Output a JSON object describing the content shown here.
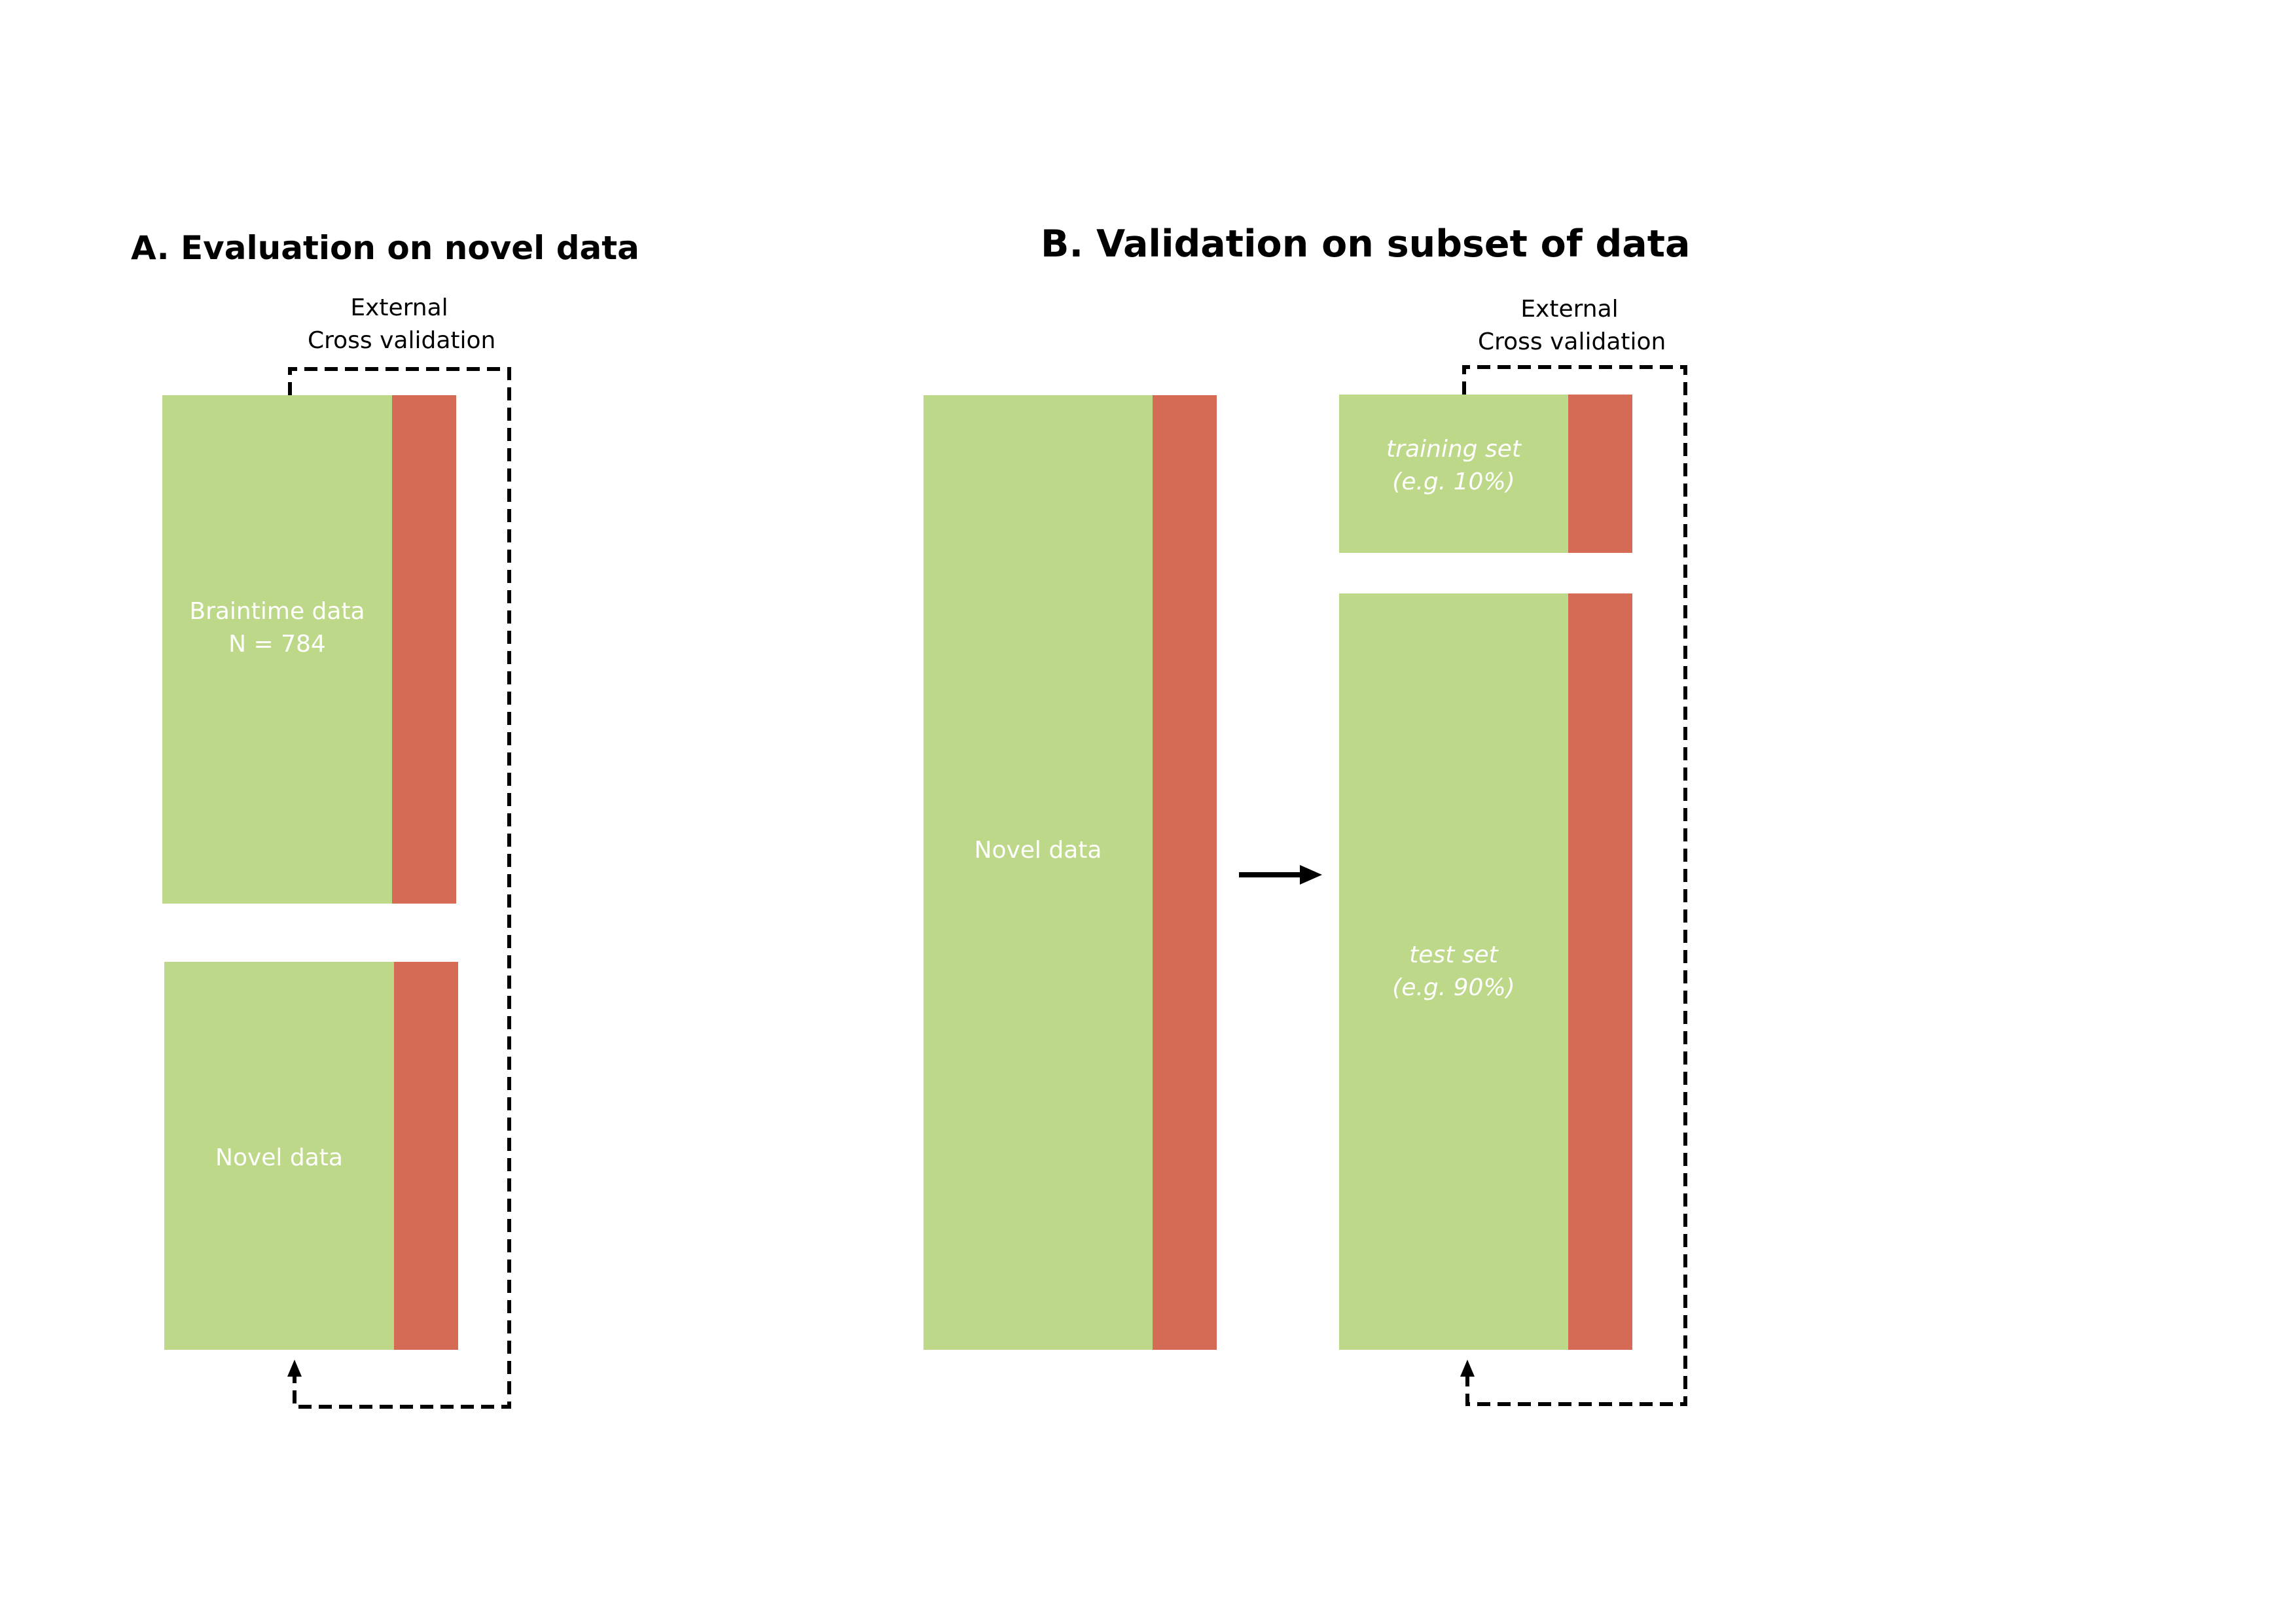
{
  "colors": {
    "green": "#bdd888",
    "red": "#d56b55",
    "line": "#000000",
    "text_on_block": "#ffffff"
  },
  "panel_a": {
    "title": "A. Evaluation on novel data",
    "cv_label": {
      "line1": "External",
      "line2": "Cross validation"
    },
    "braintime_block": {
      "line1": "Braintime data",
      "line2": "N = 784"
    },
    "novel_block": {
      "label": "Novel data"
    }
  },
  "panel_b": {
    "title": "B. Validation on subset of data",
    "cv_label": {
      "line1": "External",
      "line2": "Cross validation"
    },
    "novel_block": {
      "label": "Novel data"
    },
    "training_block": {
      "line1": "training set",
      "line2": "(e.g. 10%)"
    },
    "test_block": {
      "line1": "test set",
      "line2": "(e.g. 90%)"
    }
  }
}
